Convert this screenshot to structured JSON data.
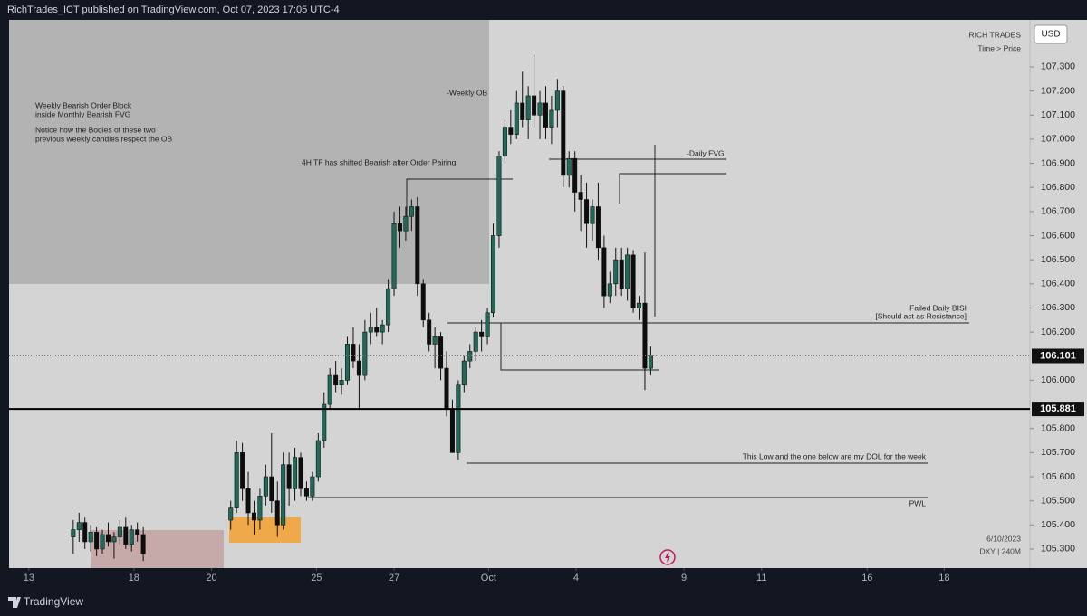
{
  "chart_data": {
    "type": "candlestick",
    "header": "RichTrades_ICT published on TradingView.com, Oct 07, 2023 17:05 UTC-4",
    "brand": "RICH TRADES",
    "brand_sub": "Time > Price",
    "currency": "USD",
    "footer": "TradingView",
    "date_stamp": "6/10/2023",
    "symbol_stamp": "DXY | 240M",
    "annotations": [
      "Weekly Bearish Order Block",
      "inside Monthly Bearish FVG",
      "Notice how the Bodies of these two",
      "previous weekly candles respect the OB",
      "-Weekly OB",
      "4H TF has shifted Bearish after Order Pairing",
      "-Daily FVG",
      "Failed Daily BISI",
      "[Should act as Resistance]",
      "This Low and the one below are my DOL for the week",
      "PWL"
    ],
    "up_color": "#1f6b5b",
    "down_color": "#0d0d0d",
    "last_price": 106.101,
    "hline": 105.881,
    "xlim": [
      0,
      175
    ],
    "xticks": [
      {
        "value": 3.4,
        "label": "13"
      },
      {
        "value": 21.4,
        "label": "18"
      },
      {
        "value": 34.7,
        "label": "20"
      },
      {
        "value": 52.7,
        "label": "25"
      },
      {
        "value": 66.0,
        "label": "27"
      },
      {
        "value": 82.2,
        "label": "Oct"
      },
      {
        "value": 97.2,
        "label": "4"
      },
      {
        "value": 115.7,
        "label": "9"
      },
      {
        "value": 129.0,
        "label": "11"
      },
      {
        "value": 147.1,
        "label": "16"
      },
      {
        "value": 160.3,
        "label": "18"
      }
    ],
    "ylim": [
      105.221,
      107.495
    ],
    "yticks": [
      {
        "value": 105.3,
        "label": "105.300"
      },
      {
        "value": 105.4,
        "label": "105.400"
      },
      {
        "value": 105.5,
        "label": "105.500"
      },
      {
        "value": 105.6,
        "label": "105.600"
      },
      {
        "value": 105.7,
        "label": "105.700"
      },
      {
        "value": 105.8,
        "label": "105.800"
      },
      {
        "value": 106.0,
        "label": "106.000"
      },
      {
        "value": 106.2,
        "label": "106.200"
      },
      {
        "value": 106.3,
        "label": "106.300"
      },
      {
        "value": 106.4,
        "label": "106.400"
      },
      {
        "value": 106.5,
        "label": "106.500"
      },
      {
        "value": 106.6,
        "label": "106.600"
      },
      {
        "value": 106.7,
        "label": "106.700"
      },
      {
        "value": 106.8,
        "label": "106.800"
      },
      {
        "value": 106.9,
        "label": "106.900"
      },
      {
        "value": 107.0,
        "label": "107.000"
      },
      {
        "value": 107.1,
        "label": "107.100"
      },
      {
        "value": 107.2,
        "label": "107.200"
      },
      {
        "value": 107.3,
        "label": "107.300"
      }
    ],
    "x": [
      11,
      12,
      13,
      14,
      15,
      16,
      17,
      18,
      19,
      20,
      21,
      22,
      23,
      38,
      39,
      40,
      41,
      42,
      43,
      44,
      45,
      46,
      47,
      48,
      49,
      50,
      51,
      52,
      53,
      54,
      55,
      56,
      57,
      58,
      59,
      60,
      61,
      62,
      63,
      64,
      65,
      66,
      67,
      68,
      69,
      70,
      71,
      72,
      73,
      74,
      75,
      76,
      77,
      78,
      79,
      80,
      81,
      82,
      83,
      84,
      85,
      86,
      87,
      88,
      89,
      90,
      91,
      92,
      93,
      94,
      95,
      96,
      97,
      98,
      99,
      100,
      101,
      102,
      103,
      104,
      105,
      106,
      107,
      108,
      109,
      110
    ],
    "open": [
      105.35,
      105.38,
      105.41,
      105.33,
      105.37,
      105.3,
      105.36,
      105.33,
      105.35,
      105.39,
      105.32,
      105.38,
      105.36,
      105.42,
      105.47,
      105.7,
      105.55,
      105.45,
      105.42,
      105.52,
      105.6,
      105.5,
      105.4,
      105.65,
      105.55,
      105.68,
      105.55,
      105.52,
      105.6,
      105.75,
      105.9,
      106.02,
      105.98,
      106.0,
      106.15,
      106.08,
      106.02,
      106.2,
      106.22,
      106.2,
      106.23,
      106.38,
      106.65,
      106.62,
      106.68,
      106.72,
      106.4,
      106.25,
      106.15,
      106.18,
      106.05,
      105.88,
      105.7,
      105.98,
      106.08,
      106.12,
      106.2,
      106.18,
      106.28,
      106.6,
      106.93,
      107.05,
      107.02,
      107.15,
      107.08,
      107.18,
      107.1,
      107.15,
      107.05,
      107.12,
      107.2,
      106.85,
      106.92,
      106.78,
      106.75,
      106.65,
      106.72,
      106.55,
      106.35,
      106.4,
      106.5,
      106.38,
      106.52,
      106.3,
      106.32,
      106.05
    ],
    "high": [
      105.42,
      105.45,
      105.43,
      105.4,
      105.39,
      105.38,
      105.41,
      105.37,
      105.42,
      105.43,
      105.4,
      105.41,
      105.39,
      105.5,
      105.75,
      105.74,
      105.62,
      105.5,
      105.55,
      105.65,
      105.78,
      105.58,
      105.7,
      105.7,
      105.72,
      105.7,
      105.58,
      105.62,
      105.78,
      105.95,
      106.05,
      106.08,
      106.05,
      106.18,
      106.22,
      106.15,
      106.25,
      106.28,
      106.3,
      106.25,
      106.42,
      106.7,
      106.72,
      106.72,
      106.75,
      106.76,
      106.42,
      106.28,
      106.22,
      106.2,
      106.12,
      105.92,
      106.0,
      106.1,
      106.15,
      106.22,
      106.25,
      106.3,
      106.65,
      106.95,
      107.08,
      107.12,
      107.2,
      107.28,
      107.22,
      107.35,
      107.2,
      107.22,
      107.18,
      107.25,
      107.22,
      106.95,
      106.95,
      106.85,
      106.82,
      106.75,
      106.82,
      106.6,
      106.45,
      106.55,
      106.55,
      106.55,
      106.54,
      106.35,
      106.53,
      106.14
    ],
    "low": [
      105.28,
      105.33,
      105.3,
      105.29,
      105.27,
      105.28,
      105.31,
      105.26,
      105.32,
      105.3,
      105.29,
      105.33,
      105.25,
      105.38,
      105.45,
      105.5,
      105.4,
      105.36,
      105.38,
      105.48,
      105.45,
      105.35,
      105.38,
      105.48,
      105.5,
      105.52,
      105.5,
      105.5,
      105.58,
      105.72,
      105.88,
      105.95,
      105.94,
      105.98,
      106.05,
      105.88,
      106.0,
      106.15,
      106.18,
      106.15,
      106.2,
      106.35,
      106.55,
      106.58,
      106.62,
      106.35,
      106.22,
      106.12,
      106.05,
      106.0,
      105.85,
      105.7,
      105.67,
      105.95,
      106.05,
      106.08,
      106.12,
      106.15,
      106.26,
      106.55,
      106.9,
      106.98,
      107.0,
      107.05,
      107.0,
      107.05,
      107.0,
      107.0,
      106.98,
      107.05,
      106.8,
      106.8,
      106.7,
      106.62,
      106.55,
      106.58,
      106.5,
      106.3,
      106.32,
      106.35,
      106.35,
      106.33,
      106.28,
      106.25,
      105.96,
      106.02
    ],
    "close": [
      105.38,
      105.41,
      105.33,
      105.37,
      105.3,
      105.36,
      105.33,
      105.35,
      105.39,
      105.32,
      105.38,
      105.36,
      105.28,
      105.47,
      105.7,
      105.55,
      105.45,
      105.42,
      105.52,
      105.6,
      105.5,
      105.4,
      105.65,
      105.55,
      105.68,
      105.55,
      105.52,
      105.6,
      105.75,
      105.9,
      106.02,
      105.98,
      106.0,
      106.15,
      106.08,
      106.02,
      106.2,
      106.22,
      106.2,
      106.23,
      106.38,
      106.65,
      106.62,
      106.68,
      106.72,
      106.4,
      106.25,
      106.15,
      106.18,
      106.05,
      105.88,
      105.7,
      105.98,
      106.08,
      106.12,
      106.2,
      106.18,
      106.28,
      106.6,
      106.93,
      107.05,
      107.02,
      107.15,
      107.08,
      107.18,
      107.1,
      107.15,
      107.05,
      107.12,
      107.2,
      106.85,
      106.92,
      106.78,
      106.75,
      106.65,
      106.72,
      106.55,
      106.35,
      106.4,
      106.5,
      106.38,
      106.52,
      106.3,
      106.32,
      106.05,
      106.1
    ]
  }
}
